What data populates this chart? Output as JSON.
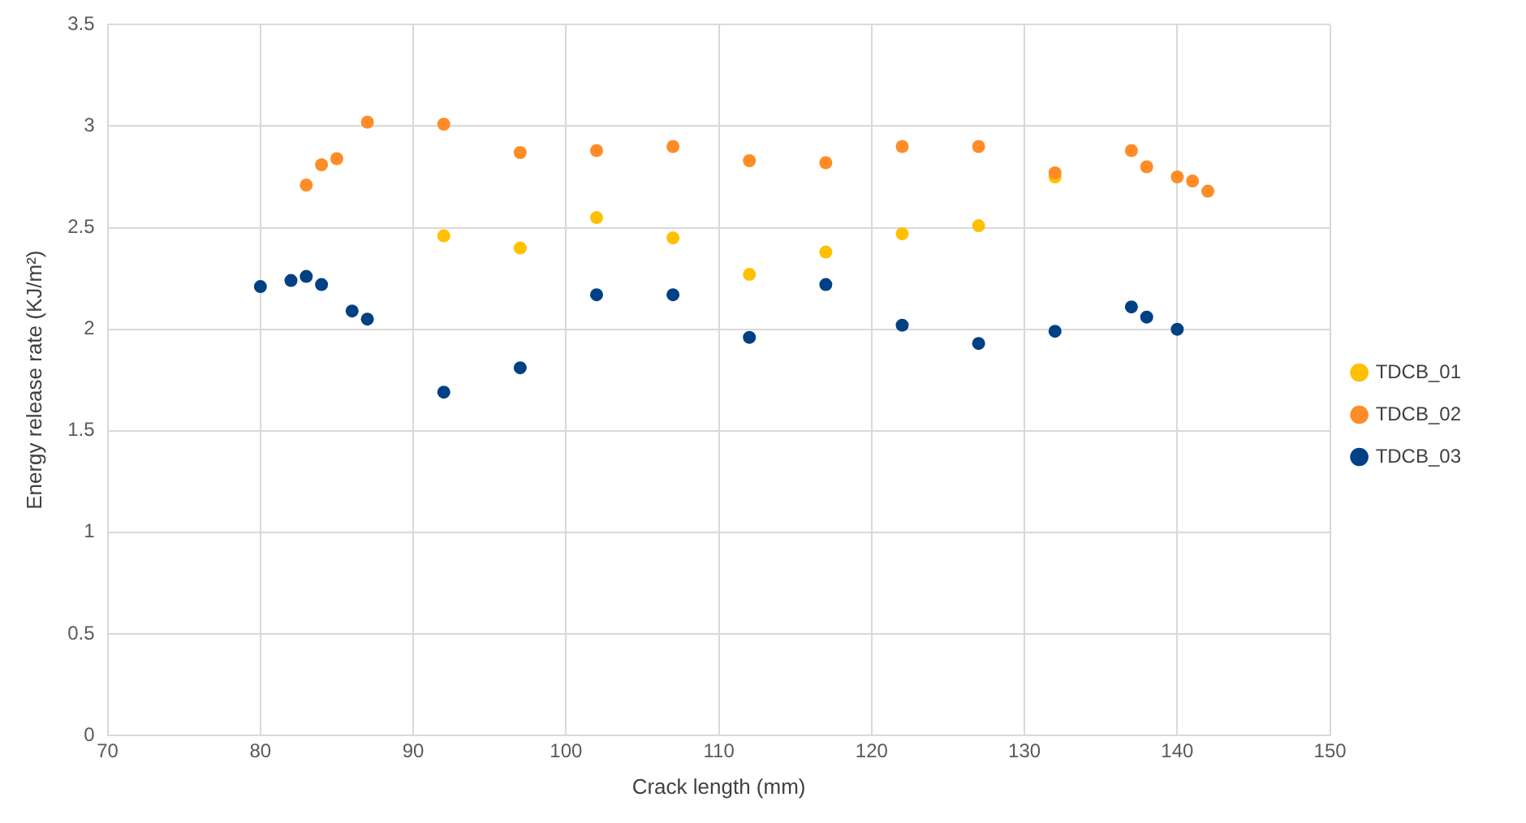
{
  "chart_data": {
    "type": "scatter",
    "xlabel": "Crack length (mm)",
    "ylabel": "Energy release rate (KJ/m²)",
    "xlim": [
      70,
      150
    ],
    "xticks": [
      70,
      80,
      90,
      100,
      110,
      120,
      130,
      140,
      150
    ],
    "ylim": [
      0,
      3.5
    ],
    "yticks": [
      0,
      0.5,
      1,
      1.5,
      2,
      2.5,
      3,
      3.5
    ],
    "grid": true,
    "legend": "right",
    "marker": "circle",
    "series": [
      {
        "name": "TDCB_01",
        "color": "#ffc000",
        "x": [
          92,
          97,
          102,
          107,
          112,
          117,
          122,
          127,
          132
        ],
        "values": [
          2.46,
          2.4,
          2.55,
          2.45,
          2.27,
          2.38,
          2.47,
          2.51,
          2.75
        ]
      },
      {
        "name": "TDCB_02",
        "color": "#ff8c26",
        "x": [
          83,
          84,
          85,
          87,
          92,
          97,
          102,
          107,
          112,
          117,
          122,
          127,
          132,
          137,
          138,
          140,
          141,
          142
        ],
        "values": [
          2.71,
          2.81,
          2.84,
          3.02,
          3.01,
          2.87,
          2.88,
          2.9,
          2.83,
          2.82,
          2.9,
          2.9,
          2.77,
          2.88,
          2.8,
          2.75,
          2.73,
          2.68
        ]
      },
      {
        "name": "TDCB_03",
        "color": "#004085",
        "x": [
          80,
          82,
          83,
          84,
          86,
          87,
          92,
          97,
          102,
          107,
          112,
          117,
          122,
          127,
          132,
          137,
          138,
          140
        ],
        "values": [
          2.21,
          2.24,
          2.26,
          2.22,
          2.09,
          2.05,
          1.69,
          1.81,
          2.17,
          2.17,
          1.96,
          2.22,
          2.02,
          1.93,
          1.99,
          2.11,
          2.06,
          2.0
        ]
      }
    ]
  }
}
